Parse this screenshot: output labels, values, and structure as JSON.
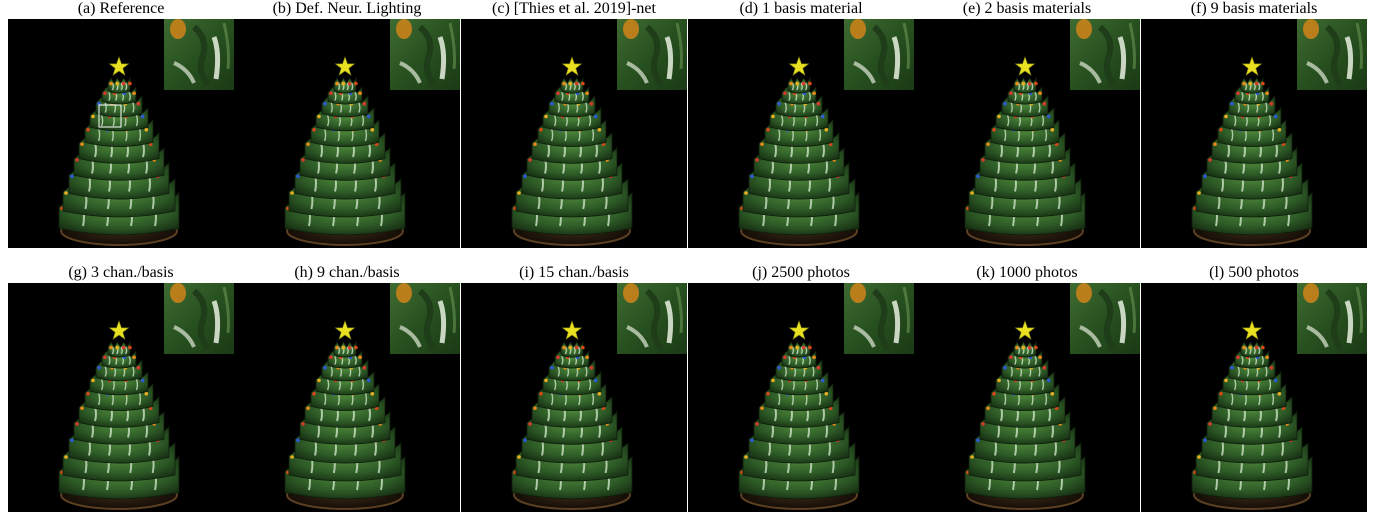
{
  "panels": [
    {
      "label": "(a) Reference",
      "highlight_box": true
    },
    {
      "label": "(b) Def. Neur. Lighting"
    },
    {
      "label": "(c) [Thies et al. 2019]-net"
    },
    {
      "label": "(d) 1 basis material"
    },
    {
      "label": "(e) 2 basis materials"
    },
    {
      "label": "(f) 9 basis materials"
    },
    {
      "label": "(g) 3 chan./basis"
    },
    {
      "label": "(h) 9 chan./basis"
    },
    {
      "label": "(i) 15 chan./basis"
    },
    {
      "label": "(j) 2500 photos"
    },
    {
      "label": "(k) 1000 photos"
    },
    {
      "label": "(l) 500 photos"
    }
  ],
  "colors": {
    "background": "#000000",
    "tree_green": "#2e5a28",
    "star_yellow": "#e8e020",
    "highlight": "#ffffff"
  },
  "icons": {
    "tree": "ceramic-christmas-tree-render",
    "star": "star-icon",
    "inset": "zoom-inset-crop"
  }
}
